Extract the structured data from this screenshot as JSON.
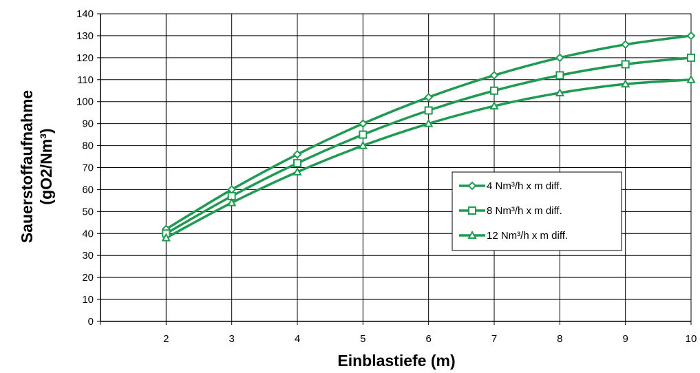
{
  "chart_data": {
    "type": "line",
    "xlabel": "Einblastiefe (m)",
    "ylabel_line1": "Sauerstoffaufnahme",
    "ylabel_line2": "(gO2/Nm³)",
    "x": [
      2,
      3,
      4,
      5,
      6,
      7,
      8,
      9,
      10
    ],
    "x_ticks": [
      "2",
      "3",
      "4",
      "5",
      "6",
      "7",
      "8",
      "9",
      "10"
    ],
    "xlim": [
      1,
      10
    ],
    "ylim": [
      0,
      140
    ],
    "y_ticks": [
      "0",
      "10",
      "20",
      "30",
      "40",
      "50",
      "60",
      "70",
      "80",
      "90",
      "100",
      "110",
      "120",
      "130",
      "140"
    ],
    "grid": true,
    "legend_position": "center-right",
    "line_color": "#1f9a52",
    "series": [
      {
        "name": "4 Nm³/h x m diff.",
        "marker": "diamond",
        "values": [
          42,
          60,
          76,
          90,
          102,
          112,
          120,
          126,
          130
        ]
      },
      {
        "name": "8 Nm³/h x m diff.",
        "marker": "square",
        "values": [
          40,
          57,
          72,
          85,
          96,
          105,
          112,
          117,
          120
        ]
      },
      {
        "name": "12 Nm³/h x m diff.",
        "marker": "triangle",
        "values": [
          38,
          54,
          68,
          80,
          90,
          98,
          104,
          108,
          110
        ]
      }
    ]
  }
}
